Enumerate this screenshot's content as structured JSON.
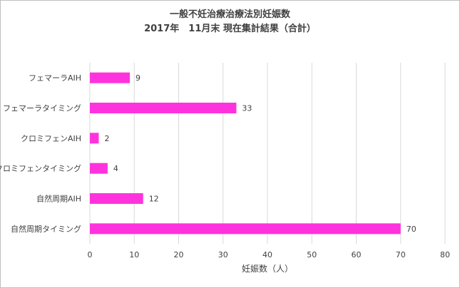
{
  "chart_data": {
    "type": "bar",
    "orientation": "horizontal",
    "title": "一般不妊治療治療法別妊娠数",
    "subtitle": "2017年　11月末 現在集計結果（合計）",
    "categories": [
      "フェマーラAIH",
      "フェマーラタイミング",
      "クロミフェンAIH",
      "クロミフェンタイミング",
      "自然周期AIH",
      "自然周期タイミング"
    ],
    "values": [
      9,
      33,
      2,
      4,
      12,
      70
    ],
    "xlabel": "妊娠数（人）",
    "ylabel": "",
    "xlim": [
      0,
      80
    ],
    "xticks": [
      0,
      10,
      20,
      30,
      40,
      50,
      60,
      70,
      80
    ],
    "grid": true,
    "legend": "none",
    "bar_color": "#ff33dd",
    "grid_color": "#d9d9d9"
  }
}
